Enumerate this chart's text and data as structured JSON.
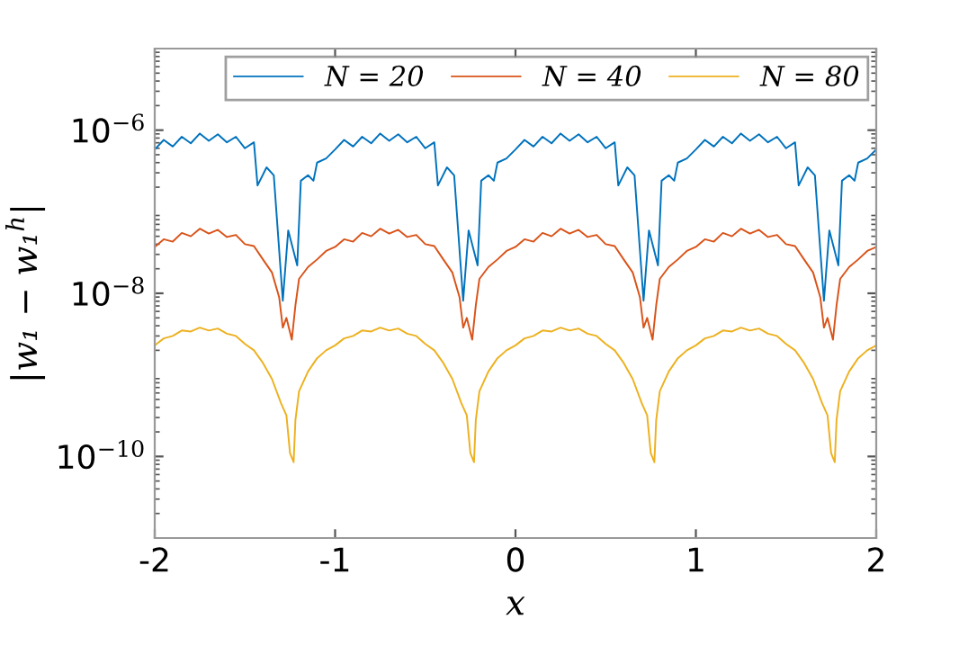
{
  "chart_data": {
    "type": "line",
    "xlabel": "x",
    "ylabel": "|w₁ − w₁$^{h}$|",
    "log": "y",
    "xlim": [
      -2,
      2
    ],
    "xticks": [
      -2,
      -1,
      0,
      1,
      2
    ],
    "ylim": [
      1e-11,
      1e-05
    ],
    "yticks": [
      {
        "value": 1e-10,
        "label": "10$^{−10}$"
      },
      {
        "value": 1e-08,
        "label": "10$^{−8}$"
      },
      {
        "value": 1e-06,
        "label": "10$^{−6}$"
      }
    ],
    "grid": false,
    "legend": "top right",
    "marker": "none",
    "line_style": "solid",
    "series": [
      {
        "name": "N = 20",
        "color": "#0072bd",
        "x": [
          -2,
          -1.95,
          -1.9,
          -1.85,
          -1.8,
          -1.75,
          -1.7,
          -1.65,
          -1.6,
          -1.55,
          -1.5,
          -1.45,
          -1.43,
          -1.38,
          -1.34,
          -1.29,
          -1.26,
          -1.21,
          -1.19,
          -1.15,
          -1.12,
          -1.1,
          -1.05,
          -1,
          -0.95,
          -0.9,
          -0.85,
          -0.8,
          -0.75,
          -0.7,
          -0.65,
          -0.6,
          -0.55,
          -0.5,
          -0.45,
          -0.43,
          -0.38,
          -0.34,
          -0.29,
          -0.26,
          -0.21,
          -0.19,
          -0.15,
          -0.12,
          -0.1,
          -0.05,
          0,
          0.05,
          0.1,
          0.15,
          0.2,
          0.25,
          0.3,
          0.35,
          0.4,
          0.45,
          0.5,
          0.55,
          0.57,
          0.62,
          0.66,
          0.71,
          0.74,
          0.79,
          0.81,
          0.85,
          0.88,
          0.9,
          0.95,
          1,
          1.05,
          1.1,
          1.15,
          1.2,
          1.25,
          1.3,
          1.35,
          1.4,
          1.45,
          1.5,
          1.55,
          1.57,
          1.62,
          1.66,
          1.71,
          1.74,
          1.79,
          1.81,
          1.85,
          1.88,
          1.9,
          1.95,
          2
        ],
        "values": [
          5.8e-07,
          7.6e-07,
          6.3e-07,
          8.3e-07,
          6.9e-07,
          9.1e-07,
          7.4e-07,
          8.9e-07,
          7.1e-07,
          8.3e-07,
          6e-07,
          7.1e-07,
          2.1e-07,
          3.5e-07,
          2.8e-07,
          8.1e-09,
          5.9e-08,
          2.2e-08,
          2.4e-07,
          2.8e-07,
          2.4e-07,
          4e-07,
          4.5e-07,
          5.8e-07,
          7.6e-07,
          6.3e-07,
          8.3e-07,
          6.9e-07,
          9.1e-07,
          7.4e-07,
          8.9e-07,
          7.1e-07,
          8.3e-07,
          6e-07,
          7.1e-07,
          2.1e-07,
          3.5e-07,
          2.8e-07,
          8.1e-09,
          5.9e-08,
          2.2e-08,
          2.4e-07,
          2.8e-07,
          2.4e-07,
          4e-07,
          4.5e-07,
          5.8e-07,
          7.6e-07,
          6.3e-07,
          8.3e-07,
          6.9e-07,
          9.1e-07,
          7.4e-07,
          8.9e-07,
          7.1e-07,
          8.3e-07,
          6e-07,
          7.1e-07,
          2.1e-07,
          3.5e-07,
          2.8e-07,
          8.1e-09,
          5.9e-08,
          2.2e-08,
          2.4e-07,
          2.8e-07,
          2.4e-07,
          4e-07,
          4.5e-07,
          5.8e-07,
          7.6e-07,
          6.3e-07,
          8.3e-07,
          6.9e-07,
          9.1e-07,
          7.4e-07,
          8.9e-07,
          7.1e-07,
          8.3e-07,
          6e-07,
          7.1e-07,
          2.1e-07,
          3.5e-07,
          2.8e-07,
          8.1e-09,
          5.9e-08,
          2.2e-08,
          2.4e-07,
          2.8e-07,
          2.4e-07,
          4e-07,
          4.5e-07,
          5.8e-07
        ]
      },
      {
        "name": "N = 40",
        "color": "#d95319",
        "x": [
          -2,
          -1.95,
          -1.9,
          -1.85,
          -1.8,
          -1.75,
          -1.7,
          -1.65,
          -1.6,
          -1.55,
          -1.5,
          -1.45,
          -1.4,
          -1.35,
          -1.31,
          -1.29,
          -1.27,
          -1.24,
          -1.22,
          -1.2,
          -1.15,
          -1.1,
          -1.05,
          -1,
          -0.95,
          -0.9,
          -0.85,
          -0.8,
          -0.75,
          -0.7,
          -0.65,
          -0.6,
          -0.55,
          -0.5,
          -0.45,
          -0.4,
          -0.35,
          -0.31,
          -0.29,
          -0.27,
          -0.24,
          -0.22,
          -0.2,
          -0.15,
          -0.1,
          -0.05,
          0,
          0.05,
          0.1,
          0.15,
          0.2,
          0.25,
          0.3,
          0.35,
          0.4,
          0.45,
          0.5,
          0.55,
          0.6,
          0.65,
          0.69,
          0.71,
          0.73,
          0.76,
          0.78,
          0.8,
          0.85,
          0.9,
          0.95,
          1,
          1.05,
          1.1,
          1.15,
          1.2,
          1.25,
          1.3,
          1.35,
          1.4,
          1.45,
          1.5,
          1.55,
          1.6,
          1.65,
          1.69,
          1.71,
          1.73,
          1.76,
          1.78,
          1.8,
          1.85,
          1.9,
          1.95,
          2
        ],
        "values": [
          3.7e-08,
          4.6e-08,
          4.3e-08,
          5.5e-08,
          5e-08,
          6.2e-08,
          5.4e-08,
          6e-08,
          4.9e-08,
          5.2e-08,
          4e-08,
          3.8e-08,
          2.6e-08,
          1.8e-08,
          8.9e-09,
          3.8e-09,
          5e-09,
          2.7e-09,
          7.1e-09,
          1.5e-08,
          2.1e-08,
          2.6e-08,
          3.3e-08,
          3.7e-08,
          4.6e-08,
          4.3e-08,
          5.5e-08,
          5e-08,
          6.2e-08,
          5.4e-08,
          6e-08,
          4.9e-08,
          5.2e-08,
          4e-08,
          3.8e-08,
          2.6e-08,
          1.8e-08,
          8.9e-09,
          3.8e-09,
          5e-09,
          2.7e-09,
          7.1e-09,
          1.5e-08,
          2.1e-08,
          2.6e-08,
          3.3e-08,
          3.7e-08,
          4.6e-08,
          4.3e-08,
          5.5e-08,
          5e-08,
          6.2e-08,
          5.4e-08,
          6e-08,
          4.9e-08,
          5.2e-08,
          4e-08,
          3.8e-08,
          2.6e-08,
          1.8e-08,
          8.9e-09,
          3.8e-09,
          5e-09,
          2.7e-09,
          7.1e-09,
          1.5e-08,
          2.1e-08,
          2.6e-08,
          3.3e-08,
          3.7e-08,
          4.6e-08,
          4.3e-08,
          5.5e-08,
          5e-08,
          6.2e-08,
          5.4e-08,
          6e-08,
          4.9e-08,
          5.2e-08,
          4e-08,
          3.8e-08,
          2.6e-08,
          1.8e-08,
          8.9e-09,
          3.8e-09,
          5e-09,
          2.7e-09,
          7.1e-09,
          1.5e-08,
          2.1e-08,
          2.6e-08,
          3.3e-08,
          3.7e-08
        ]
      },
      {
        "name": "N = 80",
        "color": "#edb120",
        "x": [
          -2,
          -1.95,
          -1.9,
          -1.85,
          -1.8,
          -1.75,
          -1.7,
          -1.65,
          -1.6,
          -1.55,
          -1.5,
          -1.45,
          -1.4,
          -1.35,
          -1.3,
          -1.27,
          -1.25,
          -1.23,
          -1.22,
          -1.2,
          -1.15,
          -1.1,
          -1.05,
          -1,
          -0.95,
          -0.9,
          -0.85,
          -0.8,
          -0.75,
          -0.7,
          -0.65,
          -0.6,
          -0.55,
          -0.5,
          -0.45,
          -0.4,
          -0.35,
          -0.3,
          -0.27,
          -0.25,
          -0.23,
          -0.22,
          -0.2,
          -0.15,
          -0.1,
          -0.05,
          0,
          0.05,
          0.1,
          0.15,
          0.2,
          0.25,
          0.3,
          0.35,
          0.4,
          0.45,
          0.5,
          0.55,
          0.6,
          0.65,
          0.7,
          0.73,
          0.75,
          0.77,
          0.78,
          0.8,
          0.85,
          0.9,
          0.95,
          1,
          1.05,
          1.1,
          1.15,
          1.2,
          1.25,
          1.3,
          1.35,
          1.4,
          1.45,
          1.5,
          1.55,
          1.6,
          1.65,
          1.7,
          1.73,
          1.75,
          1.77,
          1.78,
          1.8,
          1.85,
          1.9,
          1.95,
          2
        ],
        "values": [
          2.3e-09,
          2.8e-09,
          3e-09,
          3.5e-09,
          3.4e-09,
          3.8e-09,
          3.5e-09,
          3.7e-09,
          3.2e-09,
          3e-09,
          2.4e-09,
          2e-09,
          1.4e-09,
          8.9e-10,
          4.5e-10,
          3.2e-10,
          1.1e-10,
          8.5e-11,
          2.8e-10,
          6.3e-10,
          1.1e-09,
          1.6e-09,
          2e-09,
          2.3e-09,
          2.8e-09,
          3e-09,
          3.5e-09,
          3.4e-09,
          3.8e-09,
          3.5e-09,
          3.7e-09,
          3.2e-09,
          3e-09,
          2.4e-09,
          2e-09,
          1.4e-09,
          8.9e-10,
          4.5e-10,
          3.2e-10,
          1.1e-10,
          8.5e-11,
          2.8e-10,
          6.3e-10,
          1.1e-09,
          1.6e-09,
          2e-09,
          2.3e-09,
          2.8e-09,
          3e-09,
          3.5e-09,
          3.4e-09,
          3.8e-09,
          3.5e-09,
          3.7e-09,
          3.2e-09,
          3e-09,
          2.4e-09,
          2e-09,
          1.4e-09,
          8.9e-10,
          4.5e-10,
          3.2e-10,
          1.1e-10,
          8.5e-11,
          2.8e-10,
          6.3e-10,
          1.1e-09,
          1.6e-09,
          2e-09,
          2.3e-09,
          2.8e-09,
          3e-09,
          3.5e-09,
          3.4e-09,
          3.8e-09,
          3.5e-09,
          3.7e-09,
          3.2e-09,
          3e-09,
          2.4e-09,
          2e-09,
          1.4e-09,
          8.9e-10,
          4.5e-10,
          3.2e-10,
          1.1e-10,
          8.5e-11,
          2.8e-10,
          6.3e-10,
          1.1e-09,
          1.6e-09,
          2e-09,
          2.3e-09
        ]
      }
    ]
  }
}
